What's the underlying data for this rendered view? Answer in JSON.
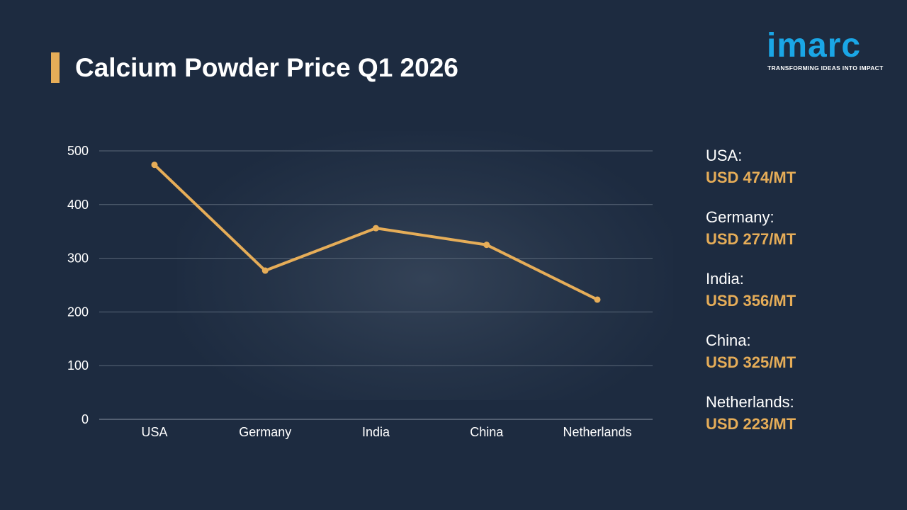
{
  "header": {
    "title": "Calcium Powder Price Q1 2026"
  },
  "logo": {
    "word": "imarc",
    "tagline": "TRANSFORMING IDEAS INTO IMPACT"
  },
  "colors": {
    "background": "#1d2b40",
    "accent": "#e6ad58",
    "logo": "#1aa6e6",
    "grid": "#5a6778"
  },
  "chart_data": {
    "type": "line",
    "title": "Calcium Powder Price Q1 2026",
    "categories": [
      "USA",
      "Germany",
      "India",
      "China",
      "Netherlands"
    ],
    "series": [
      {
        "values": [
          474,
          277,
          356,
          325,
          223
        ]
      }
    ],
    "ylim": [
      0,
      500
    ],
    "yticks": [
      0,
      100,
      200,
      300,
      400,
      500
    ],
    "grid": true,
    "legend": "right"
  },
  "legend": [
    {
      "country": "USA:",
      "price": "USD 474/MT"
    },
    {
      "country": "Germany:",
      "price": "USD 277/MT"
    },
    {
      "country": "India:",
      "price": "USD 356/MT"
    },
    {
      "country": "China:",
      "price": "USD 325/MT"
    },
    {
      "country": "Netherlands:",
      "price": "USD 223/MT"
    }
  ]
}
